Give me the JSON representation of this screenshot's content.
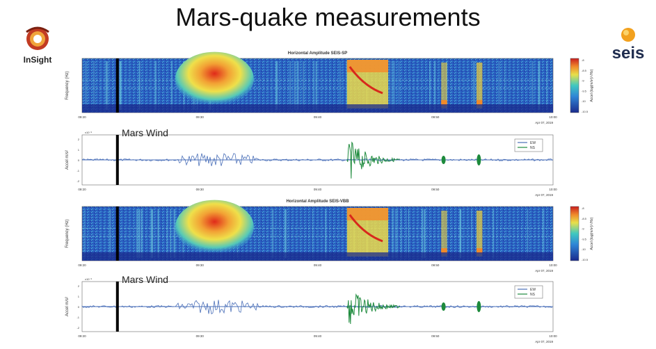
{
  "slide": {
    "title": "Mars-quake measurements",
    "logo_left": "InSight",
    "logo_right": "seis",
    "logo_left_icon": "insight-mission-logo-icon",
    "logo_right_icon": "seis-instrument-logo-icon"
  },
  "colors": {
    "spectrogram_low": "#1a3aa6",
    "spectrogram_mid": "#32b5d8",
    "spectrogram_high": "#f2d23a",
    "spectrogram_peak": "#d8281c",
    "ew_trace": "#4a6fb8",
    "ns_trace": "#1d8a3c",
    "event_marker": "#000000"
  },
  "chart_data": [
    {
      "type": "heatmap",
      "title": "Horizontal Amplitude SEIS-SP",
      "ylabel": "Frequency (Hz)",
      "x_ticks": [
        "09:20",
        "09:30",
        "09:40",
        "09:50",
        "10:00"
      ],
      "x_range_minutes": [
        1160,
        1200
      ],
      "date_label": "Apr 07, 2019",
      "colorbar_label": "Accel (log(m/s²)/√Hz)",
      "colorbar_ticks": [
        "-8",
        "-8.5",
        "-9",
        "-9.5",
        "-10",
        "-10.5"
      ],
      "events": [
        {
          "name": "wind-burst",
          "start": 1168.5,
          "end": 1174,
          "intensity": 0.8
        },
        {
          "name": "mars-quake",
          "start": 1182.5,
          "end": 1186,
          "intensity": 1.0
        },
        {
          "name": "spike-1",
          "start": 1190.5,
          "end": 1191,
          "intensity": 0.6
        },
        {
          "name": "spike-2",
          "start": 1193.5,
          "end": 1194,
          "intensity": 0.7
        }
      ],
      "marker_minute": 1163
    },
    {
      "type": "line",
      "annotation": "Mars Wind",
      "ylabel": "Accel m/s²",
      "y_scale_label": "x10⁻⁸",
      "y_ticks": [
        "2",
        "1",
        "0",
        "-1",
        "-2"
      ],
      "x_ticks": [
        "09:20",
        "09:30",
        "09:40",
        "09:50",
        "10:00"
      ],
      "date_label": "Apr 07, 2019",
      "legend": [
        "EW",
        "NS"
      ],
      "marker_minute": 1163
    },
    {
      "type": "heatmap",
      "title": "Horizontal Amplitude SEIS-VBB",
      "ylabel": "Frequency (Hz)",
      "x_ticks": [
        "09:20",
        "09:30",
        "09:40",
        "09:50",
        "10:00"
      ],
      "x_range_minutes": [
        1160,
        1200
      ],
      "date_label": "Apr 07, 2019",
      "colorbar_label": "Accel (log(m/s²)/√Hz)",
      "colorbar_ticks": [
        "-8",
        "-8.5",
        "-9",
        "-9.5",
        "-10",
        "-10.5"
      ],
      "events": [
        {
          "name": "wind-burst",
          "start": 1168.5,
          "end": 1174,
          "intensity": 0.8
        },
        {
          "name": "mars-quake",
          "start": 1182.5,
          "end": 1186,
          "intensity": 1.0
        },
        {
          "name": "spike-1",
          "start": 1190.5,
          "end": 1191,
          "intensity": 0.6
        },
        {
          "name": "spike-2",
          "start": 1193.5,
          "end": 1194,
          "intensity": 0.7
        }
      ],
      "marker_minute": 1163
    },
    {
      "type": "line",
      "annotation": "Mars Wind",
      "ylabel": "Accel m/s²",
      "y_scale_label": "x10⁻⁸",
      "y_ticks": [
        "2",
        "1",
        "0",
        "-1",
        "-2"
      ],
      "x_ticks": [
        "09:20",
        "09:30",
        "09:40",
        "09:50",
        "10:00"
      ],
      "date_label": "Apr 07, 2019",
      "legend": [
        "EW",
        "NS"
      ],
      "marker_minute": 1163
    }
  ]
}
